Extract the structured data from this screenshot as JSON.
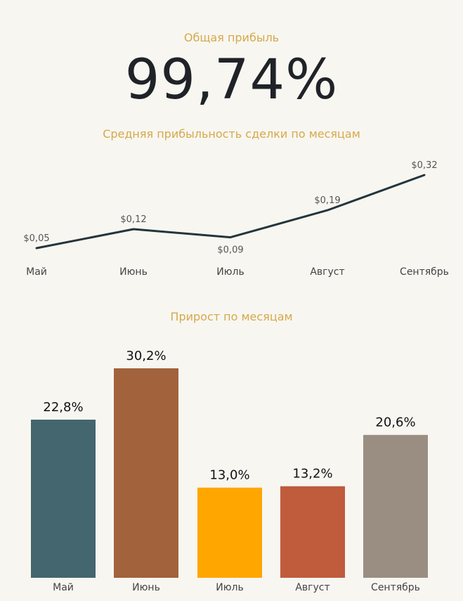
{
  "header": {
    "label": "Общая прибыль",
    "value": "99,74%"
  },
  "chart_data": [
    {
      "type": "line",
      "title": "Средняя прибыльность сделки по месяцам",
      "categories": [
        "Май",
        "Июнь",
        "Июль",
        "Август",
        "Сентябрь"
      ],
      "values": [
        0.05,
        0.12,
        0.09,
        0.19,
        0.32
      ],
      "value_labels": [
        "$0,05",
        "$0,12",
        "$0,09",
        "$0,19",
        "$0,32"
      ],
      "line_color": "#24353b"
    },
    {
      "type": "bar",
      "title": "Прирост по месяцам",
      "categories": [
        "Май",
        "Июнь",
        "Июль",
        "Август",
        "Сентябрь"
      ],
      "values": [
        22.8,
        30.2,
        13.0,
        13.2,
        20.6
      ],
      "value_labels": [
        "22,8%",
        "30,2%",
        "13,0%",
        "13,2%",
        "20,6%"
      ],
      "colors": [
        "#44666e",
        "#a2623b",
        "#ffa600",
        "#c05b3c",
        "#9a8e82"
      ]
    }
  ]
}
